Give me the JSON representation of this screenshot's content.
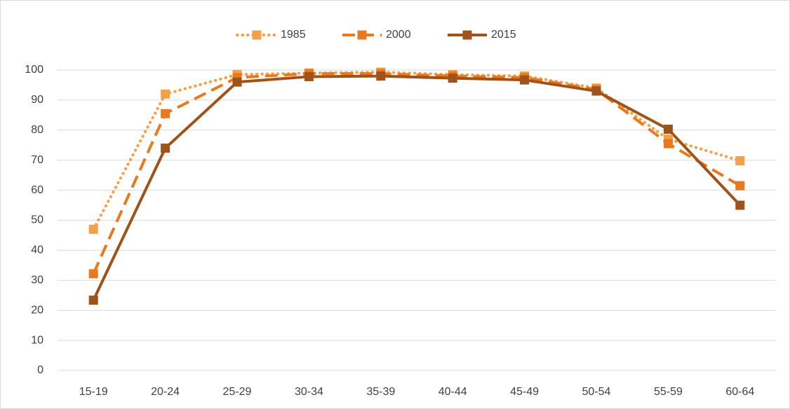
{
  "chart_data": {
    "type": "line",
    "categories": [
      "15-19",
      "20-24",
      "25-29",
      "30-34",
      "35-39",
      "40-44",
      "45-49",
      "50-54",
      "55-59",
      "60-64"
    ],
    "series": [
      {
        "name": "1985",
        "color": "#f4a04a",
        "line_style": "dotted",
        "values": [
          47,
          92,
          98.5,
          99,
          99.3,
          98.5,
          98,
          94,
          77,
          69.8
        ]
      },
      {
        "name": "2000",
        "color": "#e8791e",
        "line_style": "dashed",
        "values": [
          32.2,
          85.5,
          97.5,
          98.8,
          98.8,
          98,
          97.5,
          93.5,
          75.5,
          61.5
        ]
      },
      {
        "name": "2015",
        "color": "#a0521b",
        "line_style": "solid",
        "values": [
          23.4,
          74,
          96,
          97.8,
          98,
          97.3,
          96.7,
          93,
          80.3,
          55
        ]
      }
    ],
    "ylim": [
      0,
      100
    ],
    "yticks": [
      0,
      10,
      20,
      30,
      40,
      50,
      60,
      70,
      80,
      90,
      100
    ],
    "grid": true,
    "legend": "top"
  }
}
